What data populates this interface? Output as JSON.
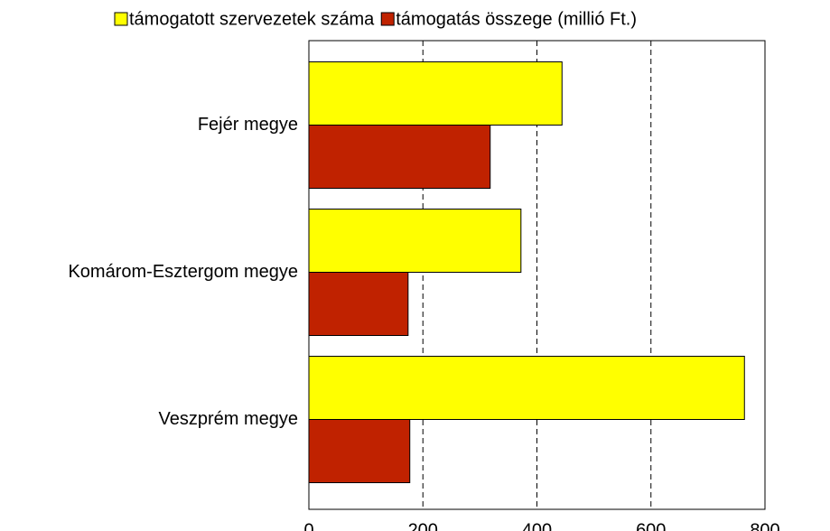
{
  "chart_data": {
    "type": "hbar",
    "categories": [
      "Fejér megye",
      "Komárom-Esztergom megye",
      "Veszprém megye"
    ],
    "series": [
      {
        "name": "támogatott szervezetek száma",
        "color": "#ffff00",
        "values": [
          444,
          372,
          764
        ]
      },
      {
        "name": "támogatás összege (millió Ft.)",
        "color": "#c02200",
        "values": [
          318,
          174,
          177
        ]
      }
    ],
    "xlim": [
      0,
      800
    ],
    "xticks": [
      0,
      200,
      400,
      600,
      800
    ],
    "grid": true,
    "legend": "top"
  }
}
